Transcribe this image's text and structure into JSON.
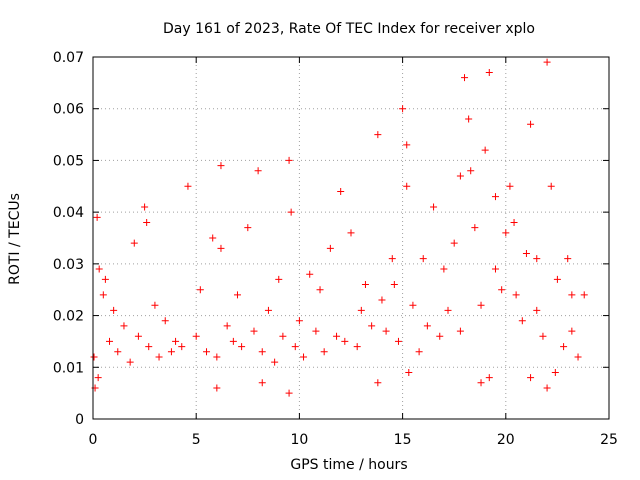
{
  "chart_data": {
    "type": "scatter",
    "title": "Day 161 of 2023, Rate Of TEC Index for receiver xplo",
    "xlabel": "GPS time / hours",
    "ylabel": "ROTI / TECUs",
    "xlim": [
      0,
      25
    ],
    "ylim": [
      0,
      0.07
    ],
    "x_ticks": [
      "0",
      "5",
      "10",
      "15",
      "20",
      "25"
    ],
    "y_ticks": [
      "0",
      "0.01",
      "0.02",
      "0.03",
      "0.04",
      "0.05",
      "0.06",
      "0.07"
    ],
    "grid": true,
    "marker": "plus",
    "color": "#ff0000",
    "series": [
      {
        "x": [
          0.05,
          0.2,
          0.3,
          0.5,
          0.8,
          1.0,
          1.2,
          1.5,
          1.8,
          2.0,
          2.2,
          2.5,
          2.7,
          3.0,
          3.2,
          3.5,
          3.8,
          4.0,
          4.3,
          4.6,
          5.0,
          5.2,
          5.5,
          5.8,
          6.0,
          6.2,
          6.5,
          6.8,
          7.0,
          7.2,
          7.5,
          7.8,
          8.0,
          8.2,
          8.5,
          8.8,
          9.0,
          9.2,
          9.5,
          9.8,
          10.0,
          10.2,
          10.5,
          10.8,
          11.0,
          11.2,
          11.5,
          11.8,
          12.0,
          12.2,
          12.5,
          12.8,
          13.0,
          13.2,
          13.5,
          13.8,
          14.0,
          14.2,
          14.5,
          14.8,
          15.0,
          15.2,
          15.5,
          15.8,
          16.0,
          16.2,
          16.5,
          16.8,
          17.0,
          17.2,
          17.5,
          17.8,
          18.0,
          18.2,
          18.5,
          18.8,
          19.0,
          19.2,
          19.5,
          19.8,
          20.0,
          20.2,
          20.5,
          20.8,
          21.0,
          21.2,
          21.5,
          21.8,
          22.0,
          22.2,
          22.5,
          22.8,
          23.0,
          23.2,
          23.5,
          23.8,
          0.1,
          0.25,
          6.0,
          8.2,
          9.5,
          15.3,
          18.8,
          19.2,
          22.0,
          13.8,
          21.2,
          22.4,
          15.2,
          17.8,
          0.6,
          2.6,
          6.2,
          9.6,
          14.6,
          18.3,
          19.5,
          20.4,
          21.5,
          23.2
        ],
        "y": [
          0.012,
          0.039,
          0.029,
          0.024,
          0.015,
          0.021,
          0.013,
          0.018,
          0.011,
          0.034,
          0.016,
          0.041,
          0.014,
          0.022,
          0.012,
          0.019,
          0.013,
          0.015,
          0.014,
          0.045,
          0.016,
          0.025,
          0.013,
          0.035,
          0.012,
          0.049,
          0.018,
          0.015,
          0.024,
          0.014,
          0.037,
          0.017,
          0.048,
          0.013,
          0.021,
          0.011,
          0.027,
          0.016,
          0.05,
          0.014,
          0.019,
          0.012,
          0.028,
          0.017,
          0.025,
          0.013,
          0.033,
          0.016,
          0.044,
          0.015,
          0.036,
          0.014,
          0.021,
          0.026,
          0.018,
          0.055,
          0.023,
          0.017,
          0.031,
          0.015,
          0.06,
          0.045,
          0.022,
          0.013,
          0.031,
          0.018,
          0.041,
          0.016,
          0.029,
          0.021,
          0.034,
          0.017,
          0.066,
          0.058,
          0.037,
          0.022,
          0.052,
          0.067,
          0.029,
          0.025,
          0.036,
          0.045,
          0.024,
          0.019,
          0.032,
          0.057,
          0.021,
          0.016,
          0.069,
          0.045,
          0.027,
          0.014,
          0.031,
          0.017,
          0.012,
          0.024,
          0.006,
          0.008,
          0.006,
          0.007,
          0.005,
          0.009,
          0.007,
          0.008,
          0.006,
          0.007,
          0.008,
          0.009,
          0.053,
          0.047,
          0.027,
          0.038,
          0.033,
          0.04,
          0.026,
          0.048,
          0.043,
          0.038,
          0.031,
          0.024
        ]
      }
    ]
  }
}
